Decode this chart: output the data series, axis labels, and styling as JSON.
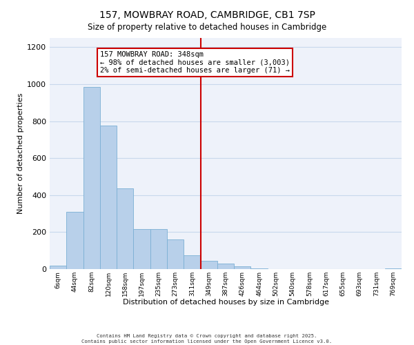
{
  "title": "157, MOWBRAY ROAD, CAMBRIDGE, CB1 7SP",
  "subtitle": "Size of property relative to detached houses in Cambridge",
  "xlabel": "Distribution of detached houses by size in Cambridge",
  "ylabel": "Number of detached properties",
  "bar_color": "#b8d0ea",
  "bar_edge_color": "#7aafd4",
  "grid_color": "#c8d8ec",
  "background_color": "#eef2fa",
  "bin_labels": [
    "6sqm",
    "44sqm",
    "82sqm",
    "120sqm",
    "158sqm",
    "197sqm",
    "235sqm",
    "273sqm",
    "311sqm",
    "349sqm",
    "387sqm",
    "426sqm",
    "464sqm",
    "502sqm",
    "540sqm",
    "578sqm",
    "617sqm",
    "655sqm",
    "693sqm",
    "731sqm",
    "769sqm"
  ],
  "bar_values": [
    20,
    310,
    985,
    775,
    435,
    215,
    215,
    160,
    75,
    45,
    30,
    15,
    5,
    0,
    0,
    0,
    0,
    0,
    0,
    0,
    5
  ],
  "vline_x_index": 9,
  "vline_color": "#cc0000",
  "ylim": [
    0,
    1250
  ],
  "yticks": [
    0,
    200,
    400,
    600,
    800,
    1000,
    1200
  ],
  "annotation_text": "157 MOWBRAY ROAD: 348sqm\n← 98% of detached houses are smaller (3,003)\n2% of semi-detached houses are larger (71) →",
  "annotation_box_color": "#cc0000",
  "footer_line1": "Contains HM Land Registry data © Crown copyright and database right 2025.",
  "footer_line2": "Contains public sector information licensed under the Open Government Licence v3.0.",
  "figsize": [
    6.0,
    5.0
  ],
  "dpi": 100
}
